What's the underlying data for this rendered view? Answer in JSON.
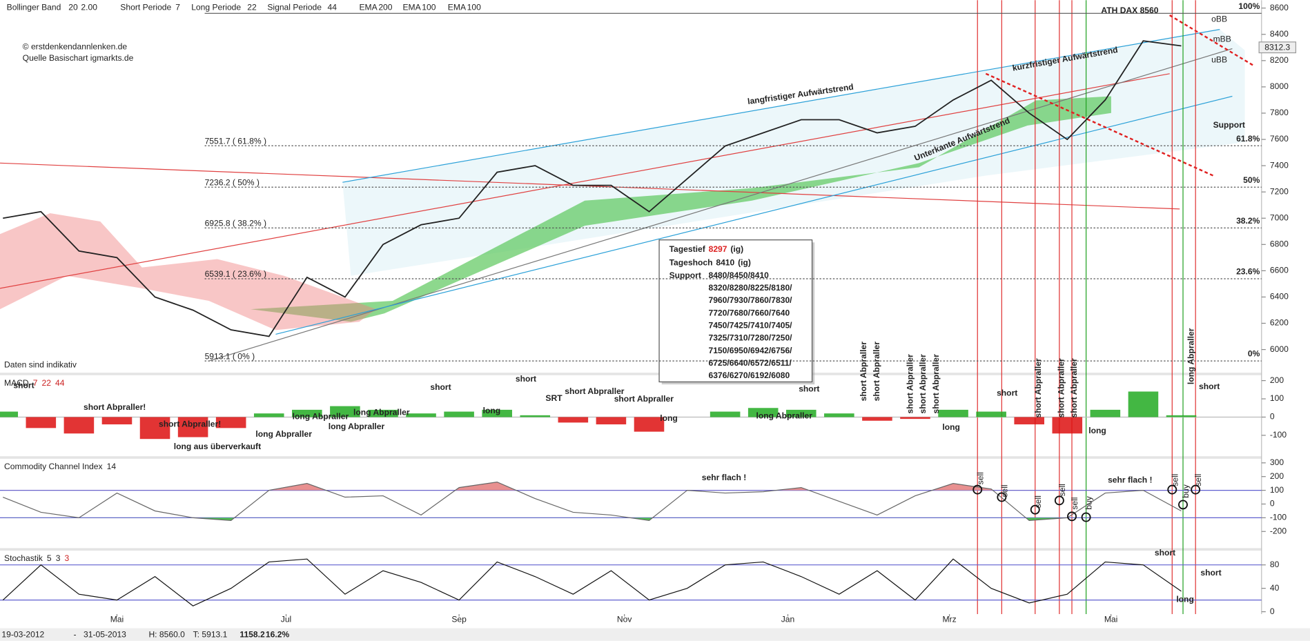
{
  "header": {
    "items": [
      {
        "label": "Bollinger Band",
        "params": [
          "20",
          "2.00"
        ]
      },
      {
        "label": "Short Periode",
        "params": [
          "7"
        ]
      },
      {
        "label": "Long Periode",
        "params": [
          "22"
        ]
      },
      {
        "label": "Signal Periode",
        "params": [
          "44"
        ]
      },
      {
        "label": "EMA",
        "params": [
          "200"
        ]
      },
      {
        "label": "EMA",
        "params": [
          "100"
        ]
      },
      {
        "label": "EMA",
        "params": [
          "100"
        ]
      }
    ]
  },
  "credits": [
    "© erstdenkendannlenken.de",
    "Quelle Basischart igmarkts.de"
  ],
  "chart_data": [
    {
      "type": "line",
      "color": "#222222",
      "x": [
        0,
        2,
        4,
        6,
        8,
        10,
        12,
        14,
        16,
        18,
        20,
        22,
        24,
        26,
        28,
        30,
        32,
        34,
        36,
        38,
        40,
        42,
        44,
        46,
        48,
        50,
        52,
        54,
        56,
        58,
        60,
        62
      ],
      "values": [
        7000,
        7050,
        6750,
        6700,
        6400,
        6300,
        6150,
        6100,
        6550,
        6400,
        6800,
        6950,
        7000,
        7350,
        7400,
        7250,
        7250,
        7050,
        7300,
        7550,
        7650,
        7750,
        7750,
        7650,
        7700,
        7900,
        8050,
        7800,
        7600,
        7900,
        8350,
        8312.3
      ],
      "xlim": [
        0,
        63.3
      ],
      "ylim": [
        5830,
        8660
      ],
      "yticks": [
        6000,
        6200,
        6400,
        6600,
        6800,
        7000,
        7200,
        7400,
        7600,
        7800,
        8000,
        8200,
        8400,
        8600
      ],
      "fib_levels": [
        {
          "value": 8560,
          "label": "100%"
        },
        {
          "value": 7551.7,
          "label": "61.8%",
          "price_label": "7551.7 ( 61.8% )"
        },
        {
          "value": 7236.2,
          "label": "50%",
          "price_label": "7236.2 ( 50% )"
        },
        {
          "value": 6925.8,
          "label": "38.2%",
          "price_label": "6925.8 ( 38.2% )"
        },
        {
          "value": 6539.1,
          "label": "23.6%",
          "price_label": "6539.1 ( 23.6% )"
        },
        {
          "value": 5913.1,
          "label": "0%",
          "price_label": "5913.1 ( 0% )"
        }
      ]
    },
    {
      "type": "bar",
      "title": "MACD",
      "params": [
        "7",
        "22",
        "44"
      ],
      "color_up": "#22aa22",
      "color_down": "#dd1111",
      "x": [
        0,
        2,
        4,
        6,
        8,
        10,
        12,
        14,
        16,
        18,
        20,
        22,
        24,
        26,
        28,
        30,
        32,
        34,
        36,
        38,
        40,
        42,
        44,
        46,
        48,
        50,
        52,
        54,
        56,
        58,
        60,
        62
      ],
      "values": [
        30,
        -60,
        -90,
        -40,
        -120,
        -110,
        -60,
        20,
        40,
        60,
        40,
        20,
        30,
        40,
        10,
        -30,
        -40,
        -80,
        0,
        30,
        50,
        40,
        20,
        -20,
        -10,
        40,
        30,
        -40,
        -90,
        40,
        140,
        10
      ],
      "xlim": [
        0,
        63.3
      ],
      "ylim": [
        -210,
        225
      ],
      "yticks": [
        -100,
        0,
        100,
        200
      ]
    },
    {
      "type": "line",
      "title": "Commodity Channel Index",
      "params": [
        "14"
      ],
      "color": "#666666",
      "x": [
        0,
        2,
        4,
        6,
        8,
        10,
        12,
        14,
        16,
        18,
        20,
        22,
        24,
        26,
        28,
        30,
        32,
        34,
        36,
        38,
        40,
        42,
        44,
        46,
        48,
        50,
        52,
        54,
        56,
        58,
        60,
        62
      ],
      "values": [
        50,
        -60,
        -100,
        80,
        -50,
        -100,
        -120,
        100,
        150,
        50,
        60,
        -80,
        120,
        160,
        40,
        -60,
        -80,
        -120,
        100,
        80,
        90,
        120,
        20,
        -80,
        60,
        150,
        110,
        -120,
        -100,
        80,
        100,
        -50
      ],
      "xlim": [
        0,
        63.3
      ],
      "ylim": [
        -315,
        324
      ],
      "yticks": [
        -200,
        -100,
        0,
        100,
        200,
        300
      ],
      "ref_lines": [
        100,
        -100
      ]
    },
    {
      "type": "line",
      "title": "Stochastik",
      "params": [
        "5",
        "3",
        "3"
      ],
      "color": "#111111",
      "x": [
        0,
        2,
        4,
        6,
        8,
        10,
        12,
        14,
        16,
        18,
        20,
        22,
        24,
        26,
        28,
        30,
        32,
        34,
        36,
        38,
        40,
        42,
        44,
        46,
        48,
        50,
        52,
        54,
        56,
        58,
        60,
        62
      ],
      "values": [
        20,
        80,
        30,
        20,
        60,
        10,
        40,
        85,
        90,
        30,
        70,
        50,
        20,
        85,
        60,
        30,
        70,
        20,
        40,
        80,
        85,
        60,
        30,
        70,
        20,
        90,
        40,
        15,
        30,
        85,
        80,
        35
      ],
      "xlim": [
        0,
        63.3
      ],
      "ylim": [
        -4,
        103
      ],
      "yticks": [
        0,
        40,
        80
      ],
      "ref_lines": [
        80,
        20
      ],
      "xticks": [
        {
          "value": 6.0,
          "label": "Mai"
        },
        {
          "value": 14.9,
          "label": "Jul"
        },
        {
          "value": 24.0,
          "label": "Sep"
        },
        {
          "value": 32.7,
          "label": "Nov"
        },
        {
          "value": 41.3,
          "label": "Jan"
        },
        {
          "value": 49.8,
          "label": "Mrz"
        },
        {
          "value": 58.3,
          "label": "Mai"
        }
      ]
    }
  ],
  "annotations": {
    "main": [
      "ATH DAX 8560",
      "oBB",
      "mBB",
      "uBB",
      "Support",
      "langfristiger Aufwärtstrend",
      "kurzfristiger Aufwärtstrend",
      "Unterkante Aufwärtstrend",
      "Daten sind indikativ"
    ],
    "macd": [
      "short",
      "short Abpraller!",
      "short Abpraller!",
      "long aus überverkauft",
      "long Abpraller",
      "long Abpraller",
      "long Abpraller",
      "long Abpraller",
      "short",
      "long",
      "short",
      "SRT",
      "short Abpraller",
      "short Abpraller",
      "long",
      "long Abpraller",
      "short",
      "short Abpraller",
      "short Abpraller",
      "short Abpraller",
      "short Abpraller",
      "short Abpraller",
      "long",
      "short",
      "short Abpraller",
      "short Abpraller",
      "short Abpraller",
      "long",
      "long Abpraller",
      "short"
    ],
    "cci": [
      "sehr flach !",
      "sehr flach !",
      "sell",
      "sell",
      "sell",
      "sell",
      "sell",
      "buy",
      "sell",
      "buy",
      "sell"
    ],
    "stoch": [
      "short",
      "short",
      "long"
    ]
  },
  "info_box": {
    "low": {
      "label": "Tagestief",
      "value": "8297",
      "unit": "(ig)"
    },
    "high": {
      "label": "Tageshoch",
      "value": "8410",
      "unit": "(ig)"
    },
    "support_label": "Support",
    "support": [
      "8480/8450/8410",
      "8320/8280/8225/8180/",
      "7960/7930/7860/7830/",
      "7720/7680/7660/7640",
      "7450/7425/7410/7405/",
      "7325/7310/7280/7250/",
      "7150/6950/6942/6756/",
      "6725/6640/6572/6511/",
      "6376/6270/6192/6080"
    ]
  },
  "footer": [
    "19-03-2012",
    "-",
    "31-05-2013",
    "H: 8560.0",
    "T: 5913.1",
    "1158.2",
    "16.2%"
  ]
}
